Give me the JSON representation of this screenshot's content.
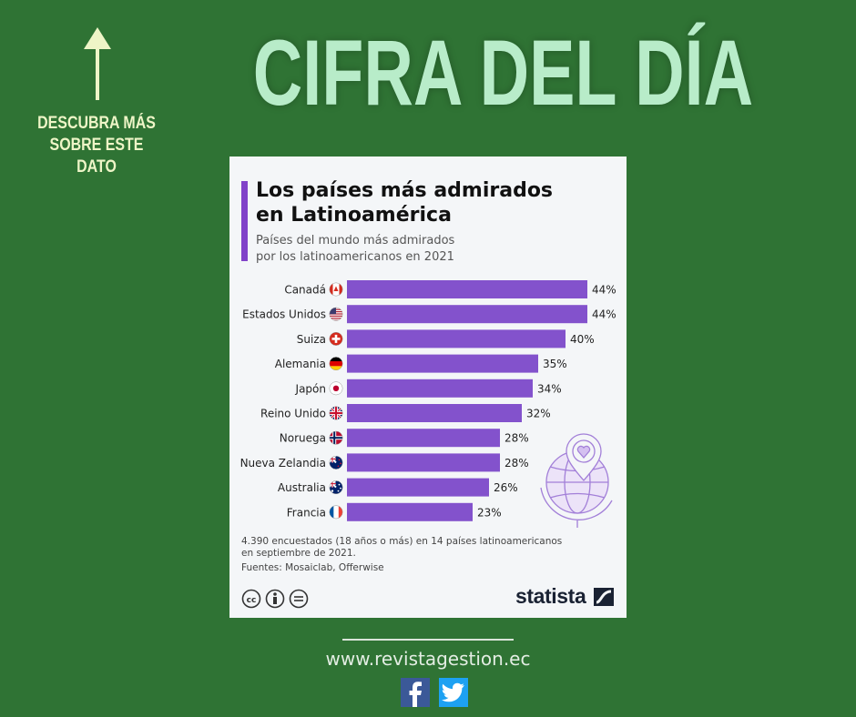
{
  "header": {
    "headline": "CIFRA DEL DÍA",
    "hint_line1": "DESCUBRA MÁS",
    "hint_line2": "SOBRE ESTE DATO"
  },
  "card": {
    "title_line1": "Los países más admirados",
    "title_line2": "en Latinoamérica",
    "subtitle_line1": "Países del mundo más admirados",
    "subtitle_line2": "por los latinoamericanos en 2021",
    "note_line1": "4.390 encuestados (18 años o más) en 14 países latinoamericanos",
    "note_line2": "en septiembre de 2021.",
    "sources": "Fuentes: Mosaiclab, Offerwise",
    "brand": "statista"
  },
  "chart_data": {
    "type": "bar",
    "orientation": "horizontal",
    "title": "Los países más admirados en Latinoamérica",
    "subtitle": "Países del mundo más admirados por los latinoamericanos en 2021",
    "categories": [
      "Canadá",
      "Estados Unidos",
      "Suiza",
      "Alemania",
      "Japón",
      "Reino Unido",
      "Noruega",
      "Nueva Zelandia",
      "Australia",
      "Francia"
    ],
    "values": [
      44,
      44,
      40,
      35,
      34,
      32,
      28,
      28,
      26,
      23
    ],
    "value_labels": [
      "44%",
      "44%",
      "40%",
      "35%",
      "34%",
      "32%",
      "28%",
      "28%",
      "26%",
      "23%"
    ],
    "flags": [
      "canada-flag",
      "usa-flag",
      "switzerland-flag",
      "germany-flag",
      "japan-flag",
      "uk-flag",
      "norway-flag",
      "new-zealand-flag",
      "australia-flag",
      "france-flag"
    ],
    "xlim": [
      0,
      44
    ],
    "unit": "%",
    "bar_color": "#8352cc",
    "grid": false,
    "legend": "none"
  },
  "footer": {
    "website": "www.revistagestion.ec",
    "social": [
      "facebook-icon",
      "twitter-icon"
    ]
  },
  "colors": {
    "background": "#2f7334",
    "headline": "#b8ecc9",
    "accent": "#8142c9",
    "facebook": "#3b5998",
    "twitter": "#1da1f2"
  }
}
